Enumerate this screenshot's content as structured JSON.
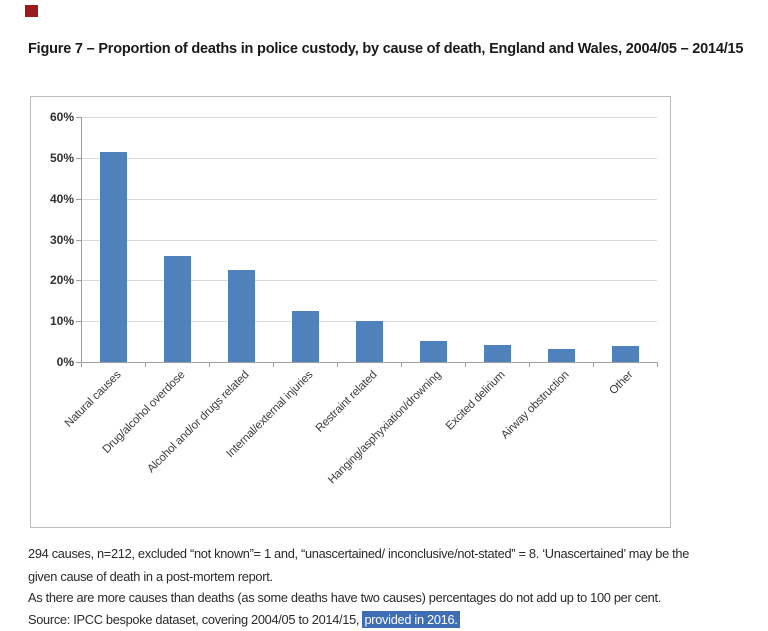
{
  "document": {
    "title": "Figure 7 – Proportion of deaths in police custody, by cause of death, England and Wales, 2004/05 – 2014/15"
  },
  "chart_data": {
    "type": "bar",
    "title": "",
    "xlabel": "",
    "ylabel": "",
    "categories": [
      "Natural causes",
      "Drug/alcohol overdose",
      "Alcohol and/or drugs related",
      "Internal/external injuries",
      "Restraint related",
      "Hanging/asphyxiation/drowning",
      "Excited delirium",
      "Airway obstruction",
      "Other"
    ],
    "values": [
      51.5,
      26,
      22.5,
      12.5,
      10,
      5.1,
      4.2,
      3.2,
      3.8
    ],
    "ylim": [
      0,
      60
    ],
    "ytick_step": 10,
    "ytick_labels": [
      "0%",
      "10%",
      "20%",
      "30%",
      "40%",
      "50%",
      "60%"
    ],
    "grid": true,
    "legend": false,
    "bar_color": "#4f81bd",
    "gridline_color": "#d9d9d9",
    "axis_color": "#9e9e9e",
    "border_color": "#bdbdbd"
  },
  "notes": {
    "note1_line1": "294 causes, n=212, excluded “not known”= 1 and, “unascertained/ inconclusive/not-stated” = 8. ‘Unascertained’ may be the",
    "note1_line2": "given cause of death in a post-mortem report.",
    "note2": "As there are more causes than deaths (as some deaths have two causes) percentages do not add up to 100 per cent.",
    "source_prefix": "Source: IPCC bespoke dataset, covering 2004/05 to 2014/15, ",
    "source_highlight": "provided in 2016."
  },
  "marks": {
    "corner_square_color": "#9c1b1e",
    "highlight_bg": "#3f6eb5",
    "highlight_fg": "#ffffff"
  }
}
